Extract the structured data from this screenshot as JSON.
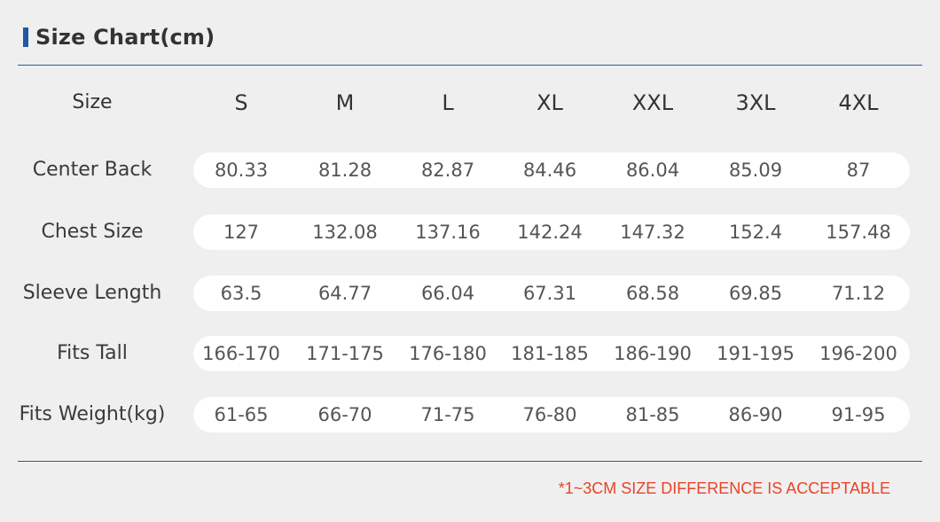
{
  "title": "Size Chart(cm)",
  "accent_color": "#1f5aa6",
  "note_color": "#e8442a",
  "header": {
    "label": "Size",
    "sizes": [
      "S",
      "M",
      "L",
      "XL",
      "XXL",
      "3XL",
      "4XL"
    ]
  },
  "rows": [
    {
      "label": "Center Back",
      "values": [
        "80.33",
        "81.28",
        "82.87",
        "84.46",
        "86.04",
        "85.09",
        "87"
      ]
    },
    {
      "label": "Chest Size",
      "values": [
        "127",
        "132.08",
        "137.16",
        "142.24",
        "147.32",
        "152.4",
        "157.48"
      ]
    },
    {
      "label": "Sleeve Length",
      "values": [
        "63.5",
        "64.77",
        "66.04",
        "67.31",
        "68.58",
        "69.85",
        "71.12"
      ]
    },
    {
      "label": "Fits Tall",
      "values": [
        "166-170",
        "171-175",
        "176-180",
        "181-185",
        "186-190",
        "191-195",
        "196-200"
      ]
    },
    {
      "label": "Fits Weight(kg)",
      "values": [
        "61-65",
        "66-70",
        "71-75",
        "76-80",
        "81-85",
        "86-90",
        "91-95"
      ]
    }
  ],
  "note": "*1~3CM SIZE DIFFERENCE IS ACCEPTABLE"
}
